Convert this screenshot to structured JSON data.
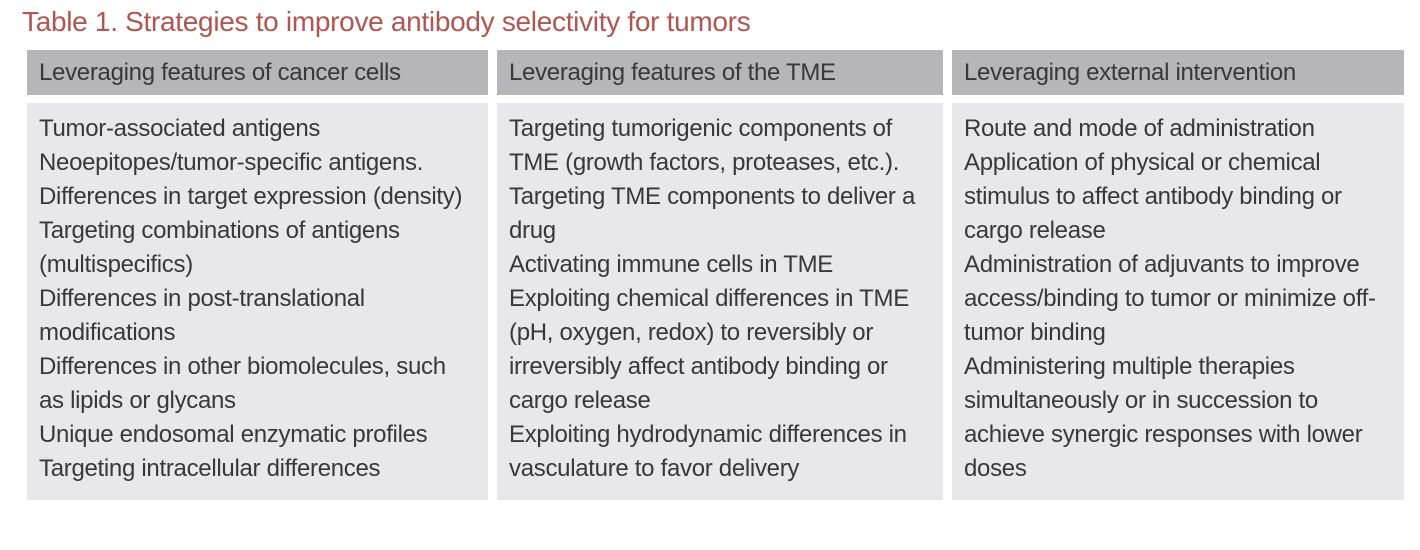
{
  "title": "Table 1. Strategies to improve antibody selectivity for tumors",
  "table": {
    "columns": [
      {
        "header": "Leveraging features of cancer cells",
        "items": [
          "Tumor-associated antigens",
          "Neoepitopes/tumor-specific antigens.",
          "Differences in target expression (density)",
          "Targeting combinations of antigens (multispecifics)",
          "Differences in post-translational modifications",
          "Differences in other biomolecules, such as lipids or glycans",
          "Unique endosomal enzymatic profiles",
          "Targeting intracellular differences"
        ]
      },
      {
        "header": "Leveraging features of the TME",
        "items": [
          "Targeting tumorigenic components of TME (growth factors, proteases, etc.).",
          "Targeting TME components to deliver a drug",
          "Activating immune cells in TME",
          "Exploiting chemical differences in TME (pH, oxygen, redox) to reversibly or irreversibly affect antibody binding or cargo release",
          "Exploiting hydrodynamic differences in vasculature to favor delivery"
        ]
      },
      {
        "header": "Leveraging external intervention",
        "items": [
          "Route and mode of administration",
          "Application of physical or chemical stimulus to affect antibody binding or cargo release",
          "Administration of adjuvants to improve access/binding to tumor or minimize off-tumor binding",
          "Administering multiple therapies simultaneously or in succession to achieve synergic responses with lower doses"
        ]
      }
    ]
  },
  "colors": {
    "title_color": "#b25550",
    "header_bg": "#b6b6b8",
    "body_bg": "#e8e8ea",
    "text_color": "#38383a",
    "page_bg": "#ffffff"
  }
}
